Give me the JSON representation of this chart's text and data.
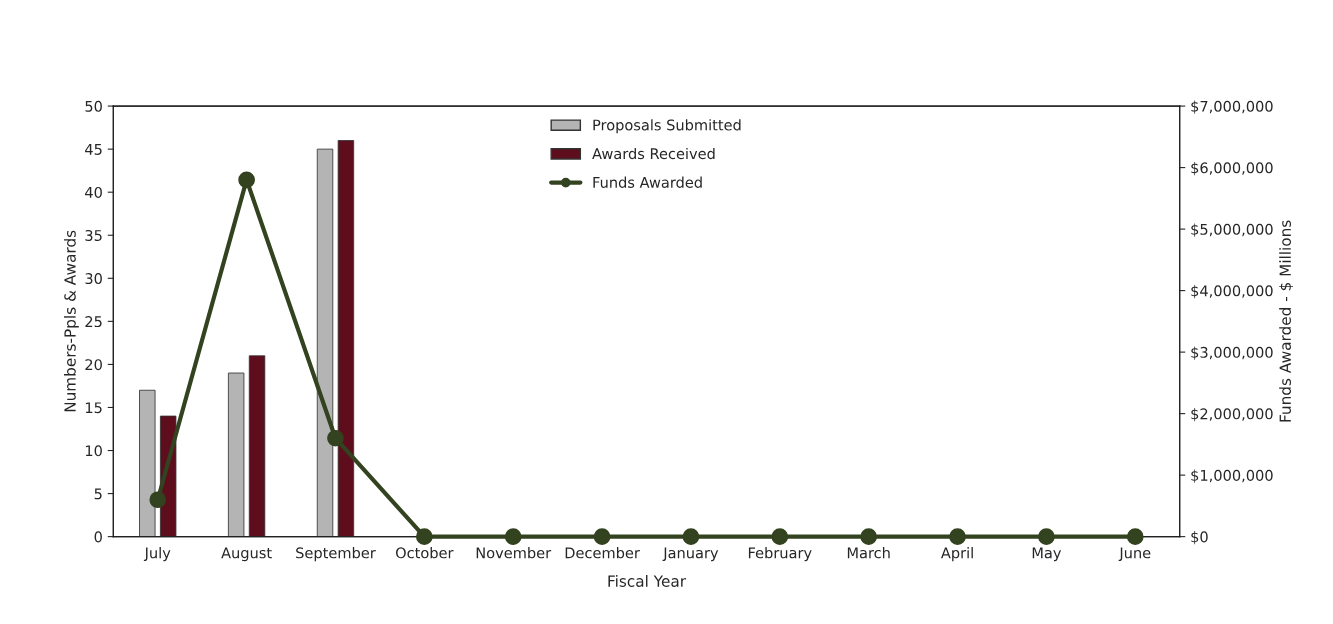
{
  "chart_data": {
    "type": "bar",
    "xlabel": "Fiscal Year",
    "ylabel": "Numbers-Ppls & Awards",
    "y2label": "Funds Awarded - $ Millions",
    "categories": [
      "July",
      "August",
      "September",
      "October",
      "November",
      "December",
      "January",
      "February",
      "March",
      "April",
      "May",
      "June"
    ],
    "series": [
      {
        "name": "Proposals Submitted",
        "color": "#b4b4b4",
        "values": [
          17,
          19,
          45,
          null,
          null,
          null,
          null,
          null,
          null,
          null,
          null,
          null
        ]
      },
      {
        "name": "Awards Received",
        "color": "#5e0d1c",
        "values": [
          14,
          21,
          46,
          null,
          null,
          null,
          null,
          null,
          null,
          null,
          null,
          null
        ]
      },
      {
        "name": "Funds Awarded",
        "type": "line",
        "axis": "y2",
        "color": "#33421f",
        "marker": "circle",
        "line_style": "solid",
        "values": [
          600000,
          5800000,
          1600000,
          0,
          0,
          0,
          0,
          0,
          0,
          0,
          0,
          0
        ]
      }
    ],
    "ylim": [
      0,
      50
    ],
    "yticks": [
      0,
      5,
      10,
      15,
      20,
      25,
      30,
      35,
      40,
      45,
      50
    ],
    "y2lim": [
      0,
      7000000
    ],
    "y2ticks": [
      {
        "value": 0,
        "label": "$0"
      },
      {
        "value": 1000000,
        "label": "$1,000,000"
      },
      {
        "value": 2000000,
        "label": "$2,000,000"
      },
      {
        "value": 3000000,
        "label": "$3,000,000"
      },
      {
        "value": 4000000,
        "label": "$4,000,000"
      },
      {
        "value": 5000000,
        "label": "$5,000,000"
      },
      {
        "value": 6000000,
        "label": "$6,000,000"
      },
      {
        "value": 7000000,
        "label": "$7,000,000"
      }
    ],
    "grid": false,
    "legend": "top"
  }
}
